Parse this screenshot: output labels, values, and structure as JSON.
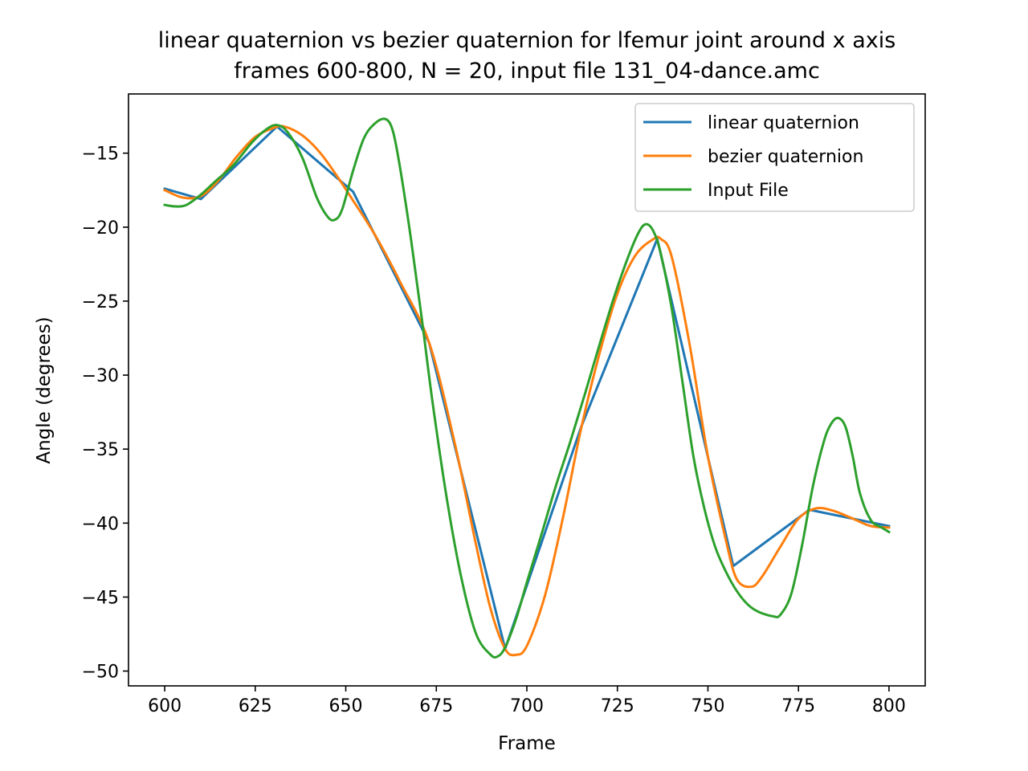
{
  "chart_data": {
    "type": "line",
    "title": "linear quaternion vs bezier quaternion for lfemur joint around x axis",
    "subtitle": "frames 600-800, N = 20, input file 131_04-dance.amc",
    "xlabel": "Frame",
    "ylabel": "Angle (degrees)",
    "xlim": [
      590,
      810
    ],
    "ylim": [
      -51,
      -11
    ],
    "xticks": [
      600,
      625,
      650,
      675,
      700,
      725,
      750,
      775,
      800
    ],
    "yticks": [
      -15,
      -20,
      -25,
      -30,
      -35,
      -40,
      -45,
      -50
    ],
    "xtick_labels": [
      "600",
      "625",
      "650",
      "675",
      "700",
      "725",
      "750",
      "775",
      "800"
    ],
    "ytick_labels": [
      "−15",
      "−20",
      "−25",
      "−30",
      "−35",
      "−40",
      "−45",
      "−50"
    ],
    "grid": false,
    "legend_position": "top-right",
    "series": [
      {
        "name": "linear quaternion",
        "color": "#1f77b4",
        "x": [
          600,
          610,
          631,
          652,
          673,
          694,
          715,
          736,
          757,
          778,
          800
        ],
        "y": [
          -17.4,
          -18.1,
          -13.2,
          -17.6,
          -27.8,
          -48.5,
          -33.5,
          -20.8,
          -42.9,
          -39.1,
          -40.2
        ]
      },
      {
        "name": "bezier quaternion",
        "color": "#ff7f0e",
        "x": [
          600,
          605,
          610,
          615,
          620,
          625,
          630,
          633,
          638,
          643,
          648,
          652,
          658,
          665,
          673,
          680,
          686,
          690,
          694,
          697,
          700,
          705,
          710,
          715,
          720,
          725,
          730,
          735,
          737,
          740,
          745,
          750,
          755,
          758,
          762,
          765,
          770,
          775,
          780,
          785,
          790,
          795,
          800
        ],
        "y": [
          -17.5,
          -18.0,
          -17.9,
          -16.8,
          -15.2,
          -13.9,
          -13.3,
          -13.2,
          -13.8,
          -15.0,
          -16.7,
          -18.2,
          -20.5,
          -23.7,
          -27.8,
          -34.5,
          -41.5,
          -45.8,
          -48.5,
          -48.9,
          -48.3,
          -44.9,
          -39.6,
          -33.6,
          -28.6,
          -24.5,
          -21.9,
          -20.8,
          -20.8,
          -22.0,
          -28.0,
          -35.5,
          -41.2,
          -43.8,
          -44.3,
          -43.6,
          -41.6,
          -39.7,
          -39.0,
          -39.2,
          -39.7,
          -40.2,
          -40.3
        ]
      },
      {
        "name": "Input File",
        "color": "#2ca02c",
        "x": [
          600,
          603,
          606,
          610,
          614,
          619,
          624,
          628,
          631,
          634,
          638,
          642,
          645,
          647,
          649,
          652,
          655,
          658,
          661,
          663,
          665,
          668,
          671,
          674,
          678,
          682,
          686,
          690,
          692,
          694,
          697,
          700,
          704,
          708,
          712,
          716,
          720,
          724,
          728,
          731,
          733,
          735,
          737,
          740,
          743,
          746,
          749,
          752,
          755,
          758,
          761,
          764,
          768,
          770,
          773,
          776,
          779,
          782,
          784,
          786,
          788,
          790,
          792,
          795,
          798,
          800
        ],
        "y": [
          -18.5,
          -18.6,
          -18.5,
          -17.8,
          -16.9,
          -15.8,
          -14.3,
          -13.4,
          -13.1,
          -13.6,
          -15.3,
          -18.0,
          -19.3,
          -19.5,
          -18.8,
          -16.2,
          -14.0,
          -13.0,
          -12.7,
          -13.5,
          -16.0,
          -20.8,
          -26.2,
          -31.9,
          -38.5,
          -43.8,
          -47.5,
          -48.9,
          -49.0,
          -48.4,
          -46.5,
          -44.0,
          -40.8,
          -37.5,
          -34.5,
          -31.3,
          -28.0,
          -24.8,
          -22.0,
          -20.3,
          -19.8,
          -20.3,
          -21.8,
          -25.5,
          -30.5,
          -35.5,
          -39.0,
          -41.6,
          -43.3,
          -44.6,
          -45.5,
          -46.0,
          -46.3,
          -46.2,
          -44.8,
          -41.5,
          -37.5,
          -34.5,
          -33.3,
          -32.9,
          -33.5,
          -35.5,
          -38.0,
          -39.8,
          -40.3,
          -40.6
        ]
      }
    ]
  }
}
